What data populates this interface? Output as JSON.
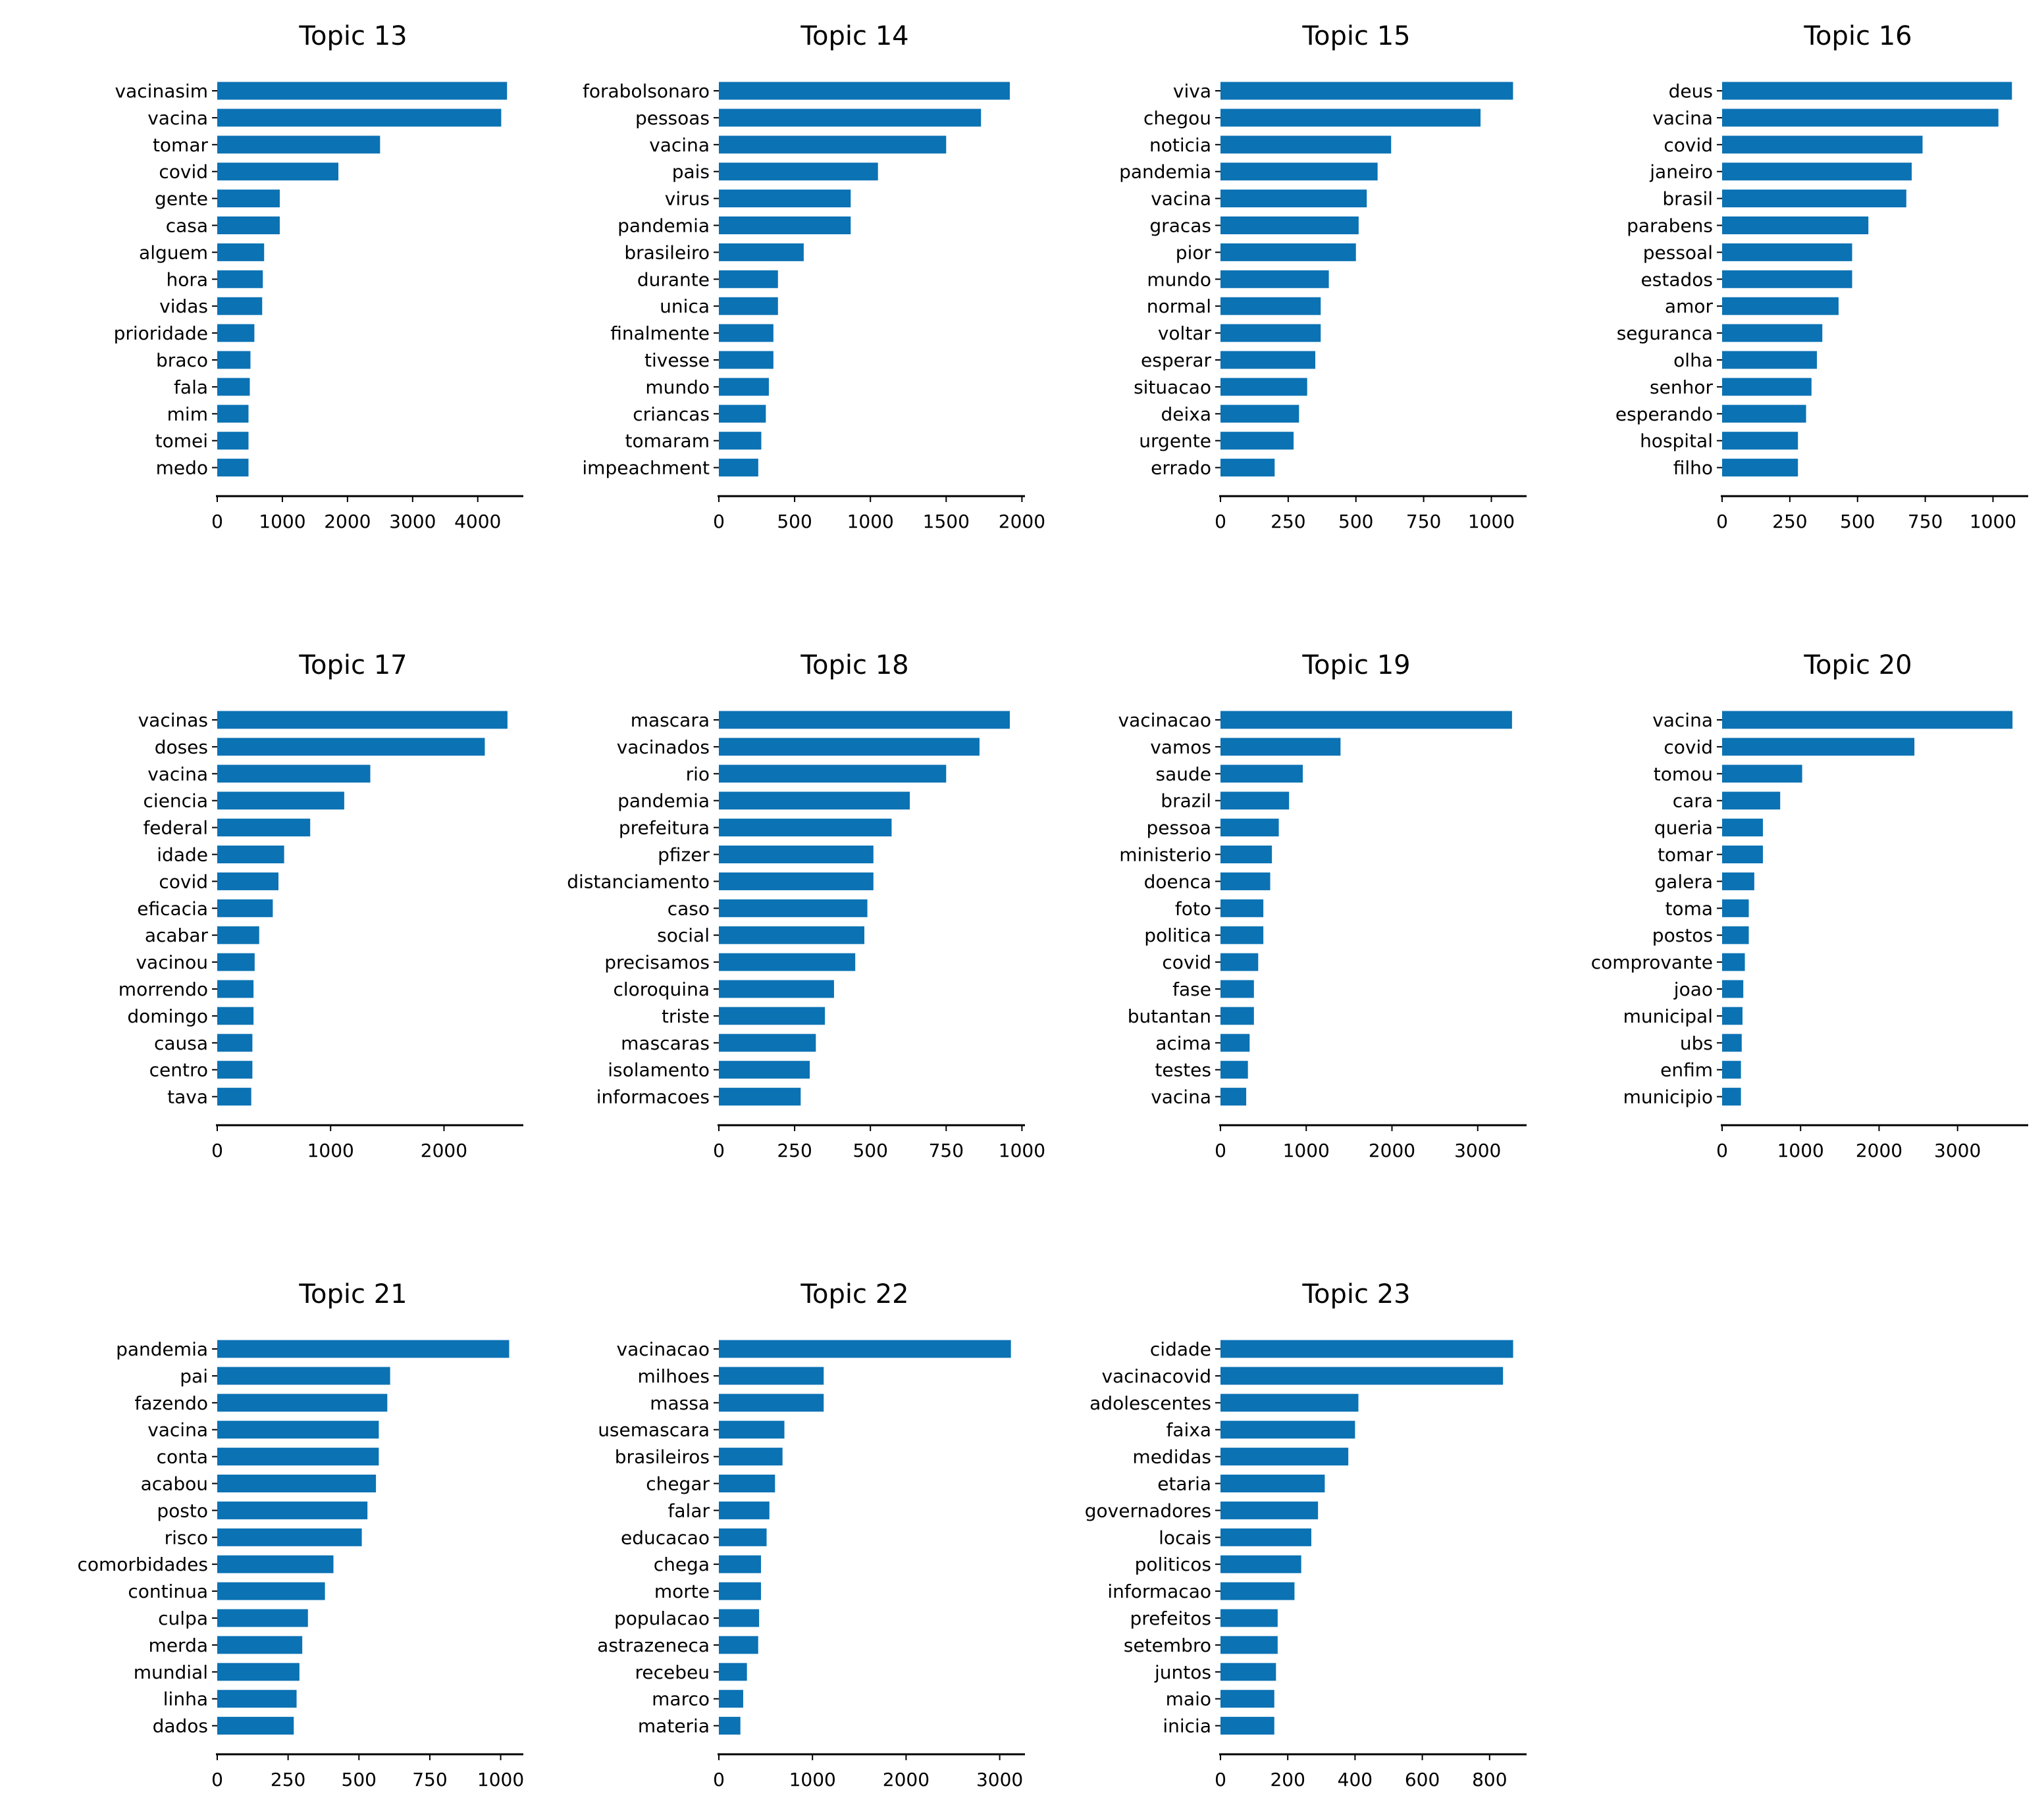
{
  "colors": {
    "bar": "#0b72b4",
    "axis": "#000000",
    "text": "#000000"
  },
  "chart_data": [
    {
      "type": "bar",
      "orientation": "horizontal",
      "title": "Topic 13",
      "xlim": [
        0,
        4700
      ],
      "xticks": [
        0,
        1000,
        2000,
        3000,
        4000
      ],
      "categories": [
        "vacinasim",
        "vacina",
        "tomar",
        "covid",
        "gente",
        "casa",
        "alguem",
        "hora",
        "vidas",
        "prioridade",
        "braco",
        "fala",
        "mim",
        "tomei",
        "medo"
      ],
      "values": [
        4450,
        4360,
        2500,
        1860,
        960,
        960,
        720,
        700,
        690,
        570,
        510,
        500,
        480,
        480,
        480
      ]
    },
    {
      "type": "bar",
      "orientation": "horizontal",
      "title": "Topic 14",
      "xlim": [
        0,
        2020
      ],
      "xticks": [
        0,
        500,
        1000,
        1500,
        2000
      ],
      "categories": [
        "forabolsonaro",
        "pessoas",
        "vacina",
        "pais",
        "virus",
        "pandemia",
        "brasileiro",
        "durante",
        "unica",
        "finalmente",
        "tivesse",
        "mundo",
        "criancas",
        "tomaram",
        "impeachment"
      ],
      "values": [
        1920,
        1730,
        1500,
        1050,
        870,
        870,
        560,
        390,
        390,
        360,
        360,
        330,
        310,
        280,
        260
      ]
    },
    {
      "type": "bar",
      "orientation": "horizontal",
      "title": "Topic 15",
      "xlim": [
        0,
        1130
      ],
      "xticks": [
        0,
        250,
        500,
        750,
        1000
      ],
      "categories": [
        "viva",
        "chegou",
        "noticia",
        "pandemia",
        "vacina",
        "gracas",
        "pior",
        "mundo",
        "normal",
        "voltar",
        "esperar",
        "situacao",
        "deixa",
        "urgente",
        "errado"
      ],
      "values": [
        1080,
        960,
        630,
        580,
        540,
        510,
        500,
        400,
        370,
        370,
        350,
        320,
        290,
        270,
        200
      ]
    },
    {
      "type": "bar",
      "orientation": "horizontal",
      "title": "Topic 16",
      "xlim": [
        0,
        1130
      ],
      "xticks": [
        0,
        250,
        500,
        750,
        1000
      ],
      "categories": [
        "deus",
        "vacina",
        "covid",
        "janeiro",
        "brasil",
        "parabens",
        "pessoal",
        "estados",
        "amor",
        "seguranca",
        "olha",
        "senhor",
        "esperando",
        "hospital",
        "filho"
      ],
      "values": [
        1070,
        1020,
        740,
        700,
        680,
        540,
        480,
        480,
        430,
        370,
        350,
        330,
        310,
        280,
        280
      ]
    },
    {
      "type": "bar",
      "orientation": "horizontal",
      "title": "Topic 17",
      "xlim": [
        0,
        2700
      ],
      "xticks": [
        0,
        1000,
        2000
      ],
      "categories": [
        "vacinas",
        "doses",
        "vacina",
        "ciencia",
        "federal",
        "idade",
        "covid",
        "eficacia",
        "acabar",
        "vacinou",
        "morrendo",
        "domingo",
        "causa",
        "centro",
        "tava"
      ],
      "values": [
        2560,
        2360,
        1350,
        1120,
        820,
        590,
        540,
        490,
        370,
        330,
        320,
        320,
        310,
        310,
        300
      ]
    },
    {
      "type": "bar",
      "orientation": "horizontal",
      "title": "Topic 18",
      "xlim": [
        0,
        1010
      ],
      "xticks": [
        0,
        250,
        500,
        750,
        1000
      ],
      "categories": [
        "mascara",
        "vacinados",
        "rio",
        "pandemia",
        "prefeitura",
        "pfizer",
        "distanciamento",
        "caso",
        "social",
        "precisamos",
        "cloroquina",
        "triste",
        "mascaras",
        "isolamento",
        "informacoes"
      ],
      "values": [
        960,
        860,
        750,
        630,
        570,
        510,
        510,
        490,
        480,
        450,
        380,
        350,
        320,
        300,
        270
      ]
    },
    {
      "type": "bar",
      "orientation": "horizontal",
      "title": "Topic 19",
      "xlim": [
        0,
        3570
      ],
      "xticks": [
        0,
        1000,
        2000,
        3000
      ],
      "categories": [
        "vacinacao",
        "vamos",
        "saude",
        "brazil",
        "pessoa",
        "ministerio",
        "doenca",
        "foto",
        "politica",
        "covid",
        "fase",
        "butantan",
        "acima",
        "testes",
        "vacina"
      ],
      "values": [
        3400,
        1400,
        960,
        800,
        680,
        600,
        580,
        500,
        500,
        440,
        390,
        390,
        340,
        320,
        300
      ]
    },
    {
      "type": "bar",
      "orientation": "horizontal",
      "title": "Topic 20",
      "xlim": [
        0,
        3900
      ],
      "xticks": [
        0,
        1000,
        2000,
        3000
      ],
      "categories": [
        "vacina",
        "covid",
        "tomou",
        "cara",
        "queria",
        "tomar",
        "galera",
        "toma",
        "postos",
        "comprovante",
        "joao",
        "municipal",
        "ubs",
        "enfim",
        "municipio"
      ],
      "values": [
        3700,
        2450,
        1020,
        740,
        520,
        520,
        410,
        340,
        340,
        290,
        270,
        260,
        250,
        240,
        240
      ]
    },
    {
      "type": "bar",
      "orientation": "horizontal",
      "title": "Topic 21",
      "xlim": [
        0,
        1080
      ],
      "xticks": [
        0,
        250,
        500,
        750,
        1000
      ],
      "categories": [
        "pandemia",
        "pai",
        "fazendo",
        "vacina",
        "conta",
        "acabou",
        "posto",
        "risco",
        "comorbidades",
        "continua",
        "culpa",
        "merda",
        "mundial",
        "linha",
        "dados"
      ],
      "values": [
        1030,
        610,
        600,
        570,
        570,
        560,
        530,
        510,
        410,
        380,
        320,
        300,
        290,
        280,
        270
      ]
    },
    {
      "type": "bar",
      "orientation": "horizontal",
      "title": "Topic 22",
      "xlim": [
        0,
        3270
      ],
      "xticks": [
        0,
        1000,
        2000,
        3000
      ],
      "categories": [
        "vacinacao",
        "milhoes",
        "massa",
        "usemascara",
        "brasileiros",
        "chegar",
        "falar",
        "educacao",
        "chega",
        "morte",
        "populacao",
        "astrazeneca",
        "recebeu",
        "marco",
        "materia"
      ],
      "values": [
        3120,
        1120,
        1120,
        700,
        680,
        600,
        540,
        510,
        450,
        450,
        430,
        420,
        300,
        260,
        230
      ]
    },
    {
      "type": "bar",
      "orientation": "horizontal",
      "title": "Topic 23",
      "xlim": [
        0,
        910
      ],
      "xticks": [
        0,
        200,
        400,
        600,
        800
      ],
      "categories": [
        "cidade",
        "vacinacovid",
        "adolescentes",
        "faixa",
        "medidas",
        "etaria",
        "governadores",
        "locais",
        "politicos",
        "informacao",
        "prefeitos",
        "setembro",
        "juntos",
        "maio",
        "inicia"
      ],
      "values": [
        870,
        840,
        410,
        400,
        380,
        310,
        290,
        270,
        240,
        220,
        170,
        170,
        165,
        160,
        160
      ]
    }
  ]
}
